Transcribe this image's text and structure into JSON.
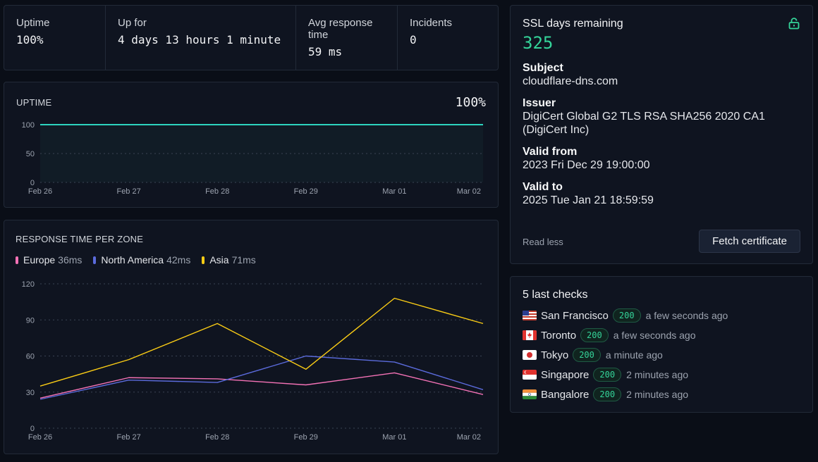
{
  "stats": [
    {
      "label": "Uptime",
      "value": "100%"
    },
    {
      "label": "Up for",
      "value": "4 days 13 hours 1 minute"
    },
    {
      "label": "Avg response time",
      "value": "59 ms"
    },
    {
      "label": "Incidents",
      "value": "0"
    }
  ],
  "uptime": {
    "title": "UPTIME",
    "value": "100%"
  },
  "response": {
    "title": "RESPONSE TIME PER ZONE",
    "legend": [
      {
        "name": "Europe",
        "value": "36ms"
      },
      {
        "name": "North America",
        "value": "42ms"
      },
      {
        "name": "Asia",
        "value": "71ms"
      }
    ]
  },
  "chart_data": [
    {
      "type": "area",
      "title": "UPTIME",
      "categories": [
        "Feb 26",
        "Feb 27",
        "Feb 28",
        "Feb 29",
        "Mar 01",
        "Mar 02"
      ],
      "y_ticks": [
        0,
        50,
        100
      ],
      "ylim": [
        0,
        100
      ],
      "grid": true,
      "series": [
        {
          "values": [
            100,
            100,
            100,
            100,
            100,
            100
          ],
          "color": "#2dd4bf"
        }
      ]
    },
    {
      "type": "line",
      "title": "RESPONSE TIME PER ZONE",
      "categories": [
        "Feb 26",
        "Feb 27",
        "Feb 28",
        "Feb 29",
        "Mar 01",
        "Mar 02"
      ],
      "y_ticks": [
        0,
        30,
        60,
        90,
        120
      ],
      "ylim": [
        0,
        120
      ],
      "grid": true,
      "legend": "top-left",
      "series": [
        {
          "name": "Europe",
          "color": "#f472b6",
          "values": [
            25,
            42,
            41,
            36,
            46,
            28
          ]
        },
        {
          "name": "North America",
          "color": "#5b6bdc",
          "values": [
            24,
            40,
            38,
            60,
            55,
            32
          ]
        },
        {
          "name": "Asia",
          "color": "#facc15",
          "values": [
            35,
            57,
            87,
            49,
            108,
            87
          ]
        }
      ]
    }
  ],
  "ssl": {
    "days_label": "SSL days remaining",
    "days": "325",
    "fields": [
      {
        "key": "Subject",
        "value": "cloudflare-dns.com"
      },
      {
        "key": "Issuer",
        "value": "DigiCert Global G2 TLS RSA SHA256 2020 CA1 (DigiCert Inc)"
      },
      {
        "key": "Valid from",
        "value": "2023 Fri Dec 29 19:00:00"
      },
      {
        "key": "Valid to",
        "value": "2025 Tue Jan 21 18:59:59"
      }
    ],
    "read_less": "Read less",
    "fetch_button": "Fetch certificate",
    "lock_icon": "unlock-icon"
  },
  "checks": {
    "title": "5 last checks",
    "items": [
      {
        "city": "San Francisco",
        "status": "200",
        "time": "a few seconds ago",
        "flag": "us"
      },
      {
        "city": "Toronto",
        "status": "200",
        "time": "a few seconds ago",
        "flag": "ca"
      },
      {
        "city": "Tokyo",
        "status": "200",
        "time": "a minute ago",
        "flag": "jp"
      },
      {
        "city": "Singapore",
        "status": "200",
        "time": "2 minutes ago",
        "flag": "sg"
      },
      {
        "city": "Bangalore",
        "status": "200",
        "time": "2 minutes ago",
        "flag": "in"
      }
    ]
  }
}
